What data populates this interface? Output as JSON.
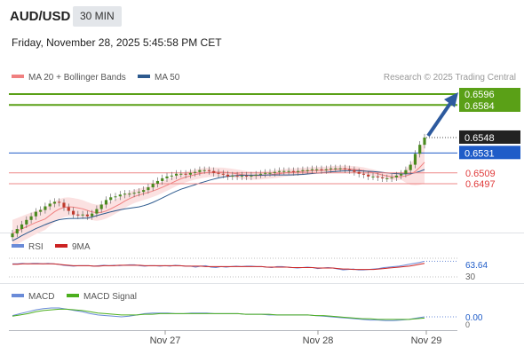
{
  "header": {
    "symbol": "AUD/USD",
    "timeframe": "30 MIN",
    "datetime": "Friday, November 28, 2025 5:45:58 PM CET"
  },
  "legend": {
    "bollinger": "MA 20 + Bollinger Bands",
    "ma50": "MA 50",
    "copyright": "Research © 2025 Trading Central"
  },
  "colors": {
    "bollinger": "#f08080",
    "ma50": "#2d5a8e",
    "target": "#5aa017",
    "current": "#222222",
    "pivot": "#1f5cc8",
    "support": "#e03c3c",
    "rsi": "#6a8bd8",
    "rsi_ma": "#cc2222",
    "macd": "#6a8bd8",
    "macd_signal": "#4caf1e"
  },
  "chart_data": [
    {
      "type": "candlestick",
      "title": "AUD/USD 30 MIN",
      "x_ticks": [
        "Nov 27",
        "Nov 28",
        "Nov 29"
      ],
      "close_approx": [
        0.6442,
        0.6447,
        0.6452,
        0.6457,
        0.6461,
        0.6466,
        0.6468,
        0.6472,
        0.6475,
        0.6477,
        0.6476,
        0.6471,
        0.6467,
        0.6463,
        0.6462,
        0.6463,
        0.6461,
        0.6464,
        0.6469,
        0.6474,
        0.6479,
        0.6482,
        0.6483,
        0.6485,
        0.6486,
        0.6486,
        0.6487,
        0.6488,
        0.649,
        0.6493,
        0.6497,
        0.65,
        0.6503,
        0.6505,
        0.6506,
        0.6508,
        0.6508,
        0.6507,
        0.6509,
        0.651,
        0.6512,
        0.6512,
        0.6511,
        0.6509,
        0.6508,
        0.6507,
        0.6505,
        0.6506,
        0.6505,
        0.6506,
        0.6505,
        0.6506,
        0.6507,
        0.6508,
        0.6509,
        0.6509,
        0.651,
        0.6511,
        0.6511,
        0.6511,
        0.651,
        0.6511,
        0.6512,
        0.6512,
        0.6513,
        0.6513,
        0.6512,
        0.6513,
        0.6514,
        0.6514,
        0.6514,
        0.6513,
        0.6512,
        0.651,
        0.6508,
        0.6507,
        0.6505,
        0.6505,
        0.6504,
        0.6503,
        0.6503,
        0.6504,
        0.6506,
        0.6508,
        0.6512,
        0.6518,
        0.653,
        0.654,
        0.6548
      ],
      "levels": [
        {
          "label": "0.6596",
          "value": 0.6596,
          "kind": "target"
        },
        {
          "label": "0.6584",
          "value": 0.6584,
          "kind": "target"
        },
        {
          "label": "0.6548",
          "value": 0.6548,
          "kind": "current"
        },
        {
          "label": "0.6531",
          "value": 0.6531,
          "kind": "pivot"
        },
        {
          "label": "0.6509",
          "value": 0.6509,
          "kind": "support"
        },
        {
          "label": "0.6497",
          "value": 0.6497,
          "kind": "support"
        }
      ]
    },
    {
      "type": "line",
      "series": [
        {
          "name": "RSI",
          "values": [
            58,
            58,
            59,
            58,
            59,
            59,
            58,
            59,
            58,
            57,
            55,
            54,
            53,
            54,
            54,
            54,
            53,
            54,
            55,
            54,
            55,
            54,
            55,
            56,
            56,
            54,
            53,
            54,
            54,
            53,
            54,
            53,
            55,
            54,
            53,
            53,
            51,
            53,
            54,
            51,
            50,
            52,
            51,
            52,
            53,
            52,
            53,
            53,
            52,
            52,
            51,
            50,
            52,
            52,
            51,
            50,
            49,
            50,
            51,
            50,
            48,
            49,
            50,
            49,
            47,
            45,
            46,
            47,
            45,
            45,
            46,
            47,
            48,
            50,
            51,
            52,
            53,
            55,
            57,
            59,
            61,
            63.64
          ]
        },
        {
          "name": "9MA",
          "values": [
            57,
            57,
            58,
            58,
            58,
            58,
            58,
            58,
            58,
            57,
            56,
            55,
            54,
            54,
            54,
            54,
            53,
            53,
            54,
            54,
            54,
            55,
            55,
            55,
            55,
            55,
            54,
            54,
            54,
            54,
            54,
            54,
            54,
            54,
            53,
            53,
            53,
            53,
            52,
            52,
            52,
            52,
            52,
            52,
            52,
            52,
            52,
            52,
            52,
            52,
            51,
            51,
            51,
            51,
            51,
            50,
            50,
            50,
            50,
            50,
            49,
            49,
            49,
            49,
            48,
            47,
            47,
            46,
            46,
            46,
            46,
            46,
            47,
            48,
            49,
            50,
            51,
            52,
            53,
            55,
            57,
            59
          ]
        }
      ],
      "ticks": [
        "30"
      ],
      "value_label": "63.64"
    },
    {
      "type": "line",
      "series": [
        {
          "name": "MACD",
          "values": [
            0.0002,
            0.0005,
            0.0008,
            0.0011,
            0.0013,
            0.0014,
            0.0014,
            0.0012,
            0.001,
            0.0008,
            0.0005,
            0.0003,
            0.0002,
            0.0001,
            0.0,
            0.0001,
            0.0003,
            0.0005,
            0.0006,
            0.0006,
            0.0006,
            0.0005,
            0.0005,
            0.0006,
            0.0006,
            0.0006,
            0.0005,
            0.0005,
            0.0005,
            0.0005,
            0.0004,
            0.0004,
            0.0004,
            0.0003,
            0.0003,
            0.0003,
            0.0003,
            0.0003,
            0.0003,
            0.0002,
            0.0001,
            0.0,
            -0.0001,
            -0.0002,
            -0.0003,
            -0.0004,
            -0.0005,
            -0.0005,
            -0.0006,
            -0.0006,
            -0.0005,
            -0.0004,
            -0.0002,
            0.0
          ]
        },
        {
          "name": "MACD Signal",
          "values": [
            0.0001,
            0.0003,
            0.0005,
            0.0008,
            0.001,
            0.0011,
            0.0012,
            0.0012,
            0.0011,
            0.001,
            0.0008,
            0.0006,
            0.0005,
            0.0004,
            0.0003,
            0.0003,
            0.0003,
            0.0004,
            0.0004,
            0.0005,
            0.0005,
            0.0005,
            0.0005,
            0.0005,
            0.0005,
            0.0005,
            0.0005,
            0.0005,
            0.0005,
            0.0005,
            0.0004,
            0.0004,
            0.0004,
            0.0004,
            0.0003,
            0.0003,
            0.0003,
            0.0003,
            0.0003,
            0.0002,
            0.0002,
            0.0001,
            0.0,
            -0.0001,
            -0.0002,
            -0.0003,
            -0.0003,
            -0.0004,
            -0.0004,
            -0.0004,
            -0.0004,
            -0.0004,
            -0.0003,
            -0.0002
          ]
        }
      ],
      "ticks": [
        "0"
      ],
      "value_label": "0.00"
    }
  ]
}
